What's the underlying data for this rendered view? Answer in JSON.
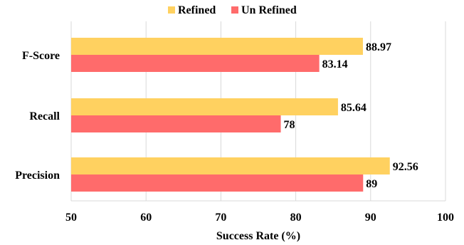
{
  "chart_data": {
    "type": "bar",
    "orientation": "horizontal",
    "categories": [
      "F-Score",
      "Recall",
      "Precision"
    ],
    "series": [
      {
        "name": "Refined",
        "color": "#FFD160",
        "values": [
          88.97,
          85.64,
          92.56
        ]
      },
      {
        "name": "Un Refined",
        "color": "#FF6B6B",
        "values": [
          83.14,
          78,
          89
        ]
      }
    ],
    "value_labels": [
      [
        "88.97",
        "85.64",
        "92.56"
      ],
      [
        "83.14",
        "78",
        "89"
      ]
    ],
    "xlabel": "Success Rate (%)",
    "ylabel": "",
    "xlim": [
      50,
      100
    ],
    "xticks": [
      "50",
      "60",
      "70",
      "80",
      "90",
      "100"
    ],
    "grid": true,
    "legend_position": "top"
  }
}
